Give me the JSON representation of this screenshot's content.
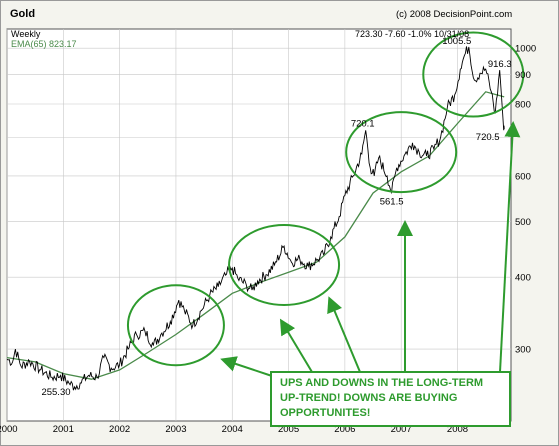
{
  "colors": {
    "plot_bg": "#ffffff",
    "frame_bg": "#f4f4ee",
    "price_line": "#000000",
    "ema_line": "#4a8a4a",
    "annotation_green": "#2e9b2e",
    "grid": "#c8c8c8"
  },
  "header": {
    "title": "Gold",
    "credit": "(c) 2008 DecisionPoint.com",
    "period": "Weekly",
    "ema_legend": "EMA(65) 823.17",
    "quote": "723.30  -7.60  -1.0%  10/31/08"
  },
  "annotation": {
    "text": "UPS AND DOWNS IN THE LONG-TERM UP-TREND!  DOWNS ARE BUYING OPPORTUNITES!"
  },
  "chart_data": {
    "type": "line",
    "title": "Gold",
    "subtitle": "Weekly",
    "y_scale": "log",
    "ylim": [
      225,
      1080
    ],
    "y_ticks": [
      300,
      400,
      500,
      600,
      700,
      800,
      900,
      1000
    ],
    "y_tick_labels": [
      "300",
      "400",
      "500",
      "600",
      "",
      "800",
      "900",
      "1000"
    ],
    "x_ticks": [
      "2000",
      "2001",
      "2002",
      "2003",
      "2004",
      "2005",
      "2006",
      "2007",
      "2008"
    ],
    "legend": "top-left",
    "grid": true,
    "series": [
      {
        "name": "Gold",
        "points": [
          [
            2000.0,
            288
          ],
          [
            2000.1,
            285
          ],
          [
            2000.15,
            300
          ],
          [
            2000.25,
            280
          ],
          [
            2000.4,
            286
          ],
          [
            2000.6,
            276
          ],
          [
            2000.8,
            268
          ],
          [
            2000.95,
            270
          ],
          [
            2001.1,
            262
          ],
          [
            2001.2,
            258
          ],
          [
            2001.3,
            262
          ],
          [
            2001.45,
            270
          ],
          [
            2001.6,
            268
          ],
          [
            2001.72,
            290
          ],
          [
            2001.85,
            278
          ],
          [
            2002.0,
            282
          ],
          [
            2002.15,
            300
          ],
          [
            2002.3,
            318
          ],
          [
            2002.45,
            322
          ],
          [
            2002.6,
            305
          ],
          [
            2002.75,
            320
          ],
          [
            2002.9,
            335
          ],
          [
            2003.05,
            365
          ],
          [
            2003.15,
            350
          ],
          [
            2003.3,
            330
          ],
          [
            2003.45,
            350
          ],
          [
            2003.6,
            372
          ],
          [
            2003.75,
            385
          ],
          [
            2003.9,
            405
          ],
          [
            2004.0,
            415
          ],
          [
            2004.1,
            398
          ],
          [
            2004.25,
            388
          ],
          [
            2004.35,
            380
          ],
          [
            2004.45,
            394
          ],
          [
            2004.6,
            404
          ],
          [
            2004.75,
            420
          ],
          [
            2004.92,
            453
          ],
          [
            2005.05,
            425
          ],
          [
            2005.2,
            430
          ],
          [
            2005.35,
            418
          ],
          [
            2005.5,
            428
          ],
          [
            2005.62,
            438
          ],
          [
            2005.75,
            470
          ],
          [
            2005.9,
            510
          ],
          [
            2006.0,
            555
          ],
          [
            2006.15,
            600
          ],
          [
            2006.3,
            655
          ],
          [
            2006.37,
            720.1
          ],
          [
            2006.45,
            620
          ],
          [
            2006.52,
            600
          ],
          [
            2006.6,
            645
          ],
          [
            2006.75,
            600
          ],
          [
            2006.83,
            561.5
          ],
          [
            2006.92,
            620
          ],
          [
            2007.05,
            650
          ],
          [
            2007.2,
            685
          ],
          [
            2007.32,
            660
          ],
          [
            2007.45,
            650
          ],
          [
            2007.58,
            668
          ],
          [
            2007.7,
            700
          ],
          [
            2007.82,
            790
          ],
          [
            2007.95,
            830
          ],
          [
            2008.05,
            920
          ],
          [
            2008.12,
            970
          ],
          [
            2008.2,
            1005.5
          ],
          [
            2008.3,
            880
          ],
          [
            2008.4,
            905
          ],
          [
            2008.5,
            920
          ],
          [
            2008.6,
            840
          ],
          [
            2008.67,
            770
          ],
          [
            2008.75,
            916.3
          ],
          [
            2008.78,
            830
          ],
          [
            2008.82,
            720.5
          ],
          [
            2008.83,
            723.3
          ]
        ]
      },
      {
        "name": "EMA(65)",
        "points": [
          [
            2000.0,
            290
          ],
          [
            2000.5,
            285
          ],
          [
            2001.0,
            272
          ],
          [
            2001.5,
            266
          ],
          [
            2002.0,
            276
          ],
          [
            2002.5,
            296
          ],
          [
            2003.0,
            318
          ],
          [
            2003.5,
            345
          ],
          [
            2004.0,
            375
          ],
          [
            2004.5,
            392
          ],
          [
            2005.0,
            408
          ],
          [
            2005.5,
            425
          ],
          [
            2006.0,
            470
          ],
          [
            2006.5,
            560
          ],
          [
            2007.0,
            610
          ],
          [
            2007.5,
            650
          ],
          [
            2008.0,
            740
          ],
          [
            2008.5,
            840
          ],
          [
            2008.83,
            823.17
          ]
        ]
      }
    ],
    "annotations": [
      "255.30",
      "720.1",
      "561.5",
      "1005.5",
      "916.3",
      "720.5"
    ]
  }
}
